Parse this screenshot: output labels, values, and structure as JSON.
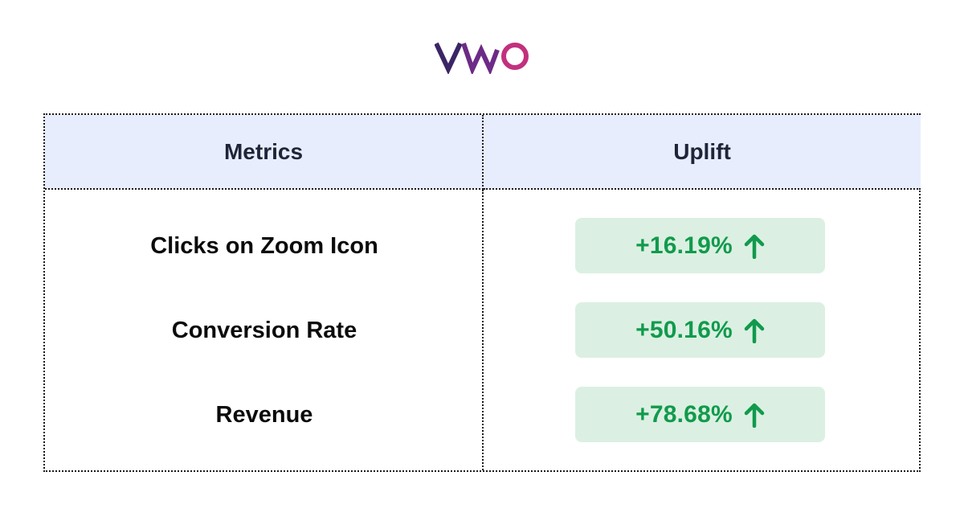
{
  "logo": {
    "text": "VWO",
    "colors": {
      "v": "#3b2566",
      "w": "#6d2a86",
      "o": "#c2307e"
    }
  },
  "table": {
    "headers": {
      "metrics": "Metrics",
      "uplift": "Uplift"
    },
    "rows": [
      {
        "metric": "Clicks on Zoom Icon",
        "uplift": "+16.19%",
        "trend_icon": "arrow-up-icon"
      },
      {
        "metric": "Conversion Rate",
        "uplift": "+50.16%",
        "trend_icon": "arrow-up-icon"
      },
      {
        "metric": "Revenue",
        "uplift": "+78.68%",
        "trend_icon": "arrow-up-icon"
      }
    ]
  },
  "colors": {
    "header_bg": "#e8edfd",
    "header_text": "#1f2538",
    "pill_bg": "#dbf0e2",
    "positive": "#119a4c"
  }
}
